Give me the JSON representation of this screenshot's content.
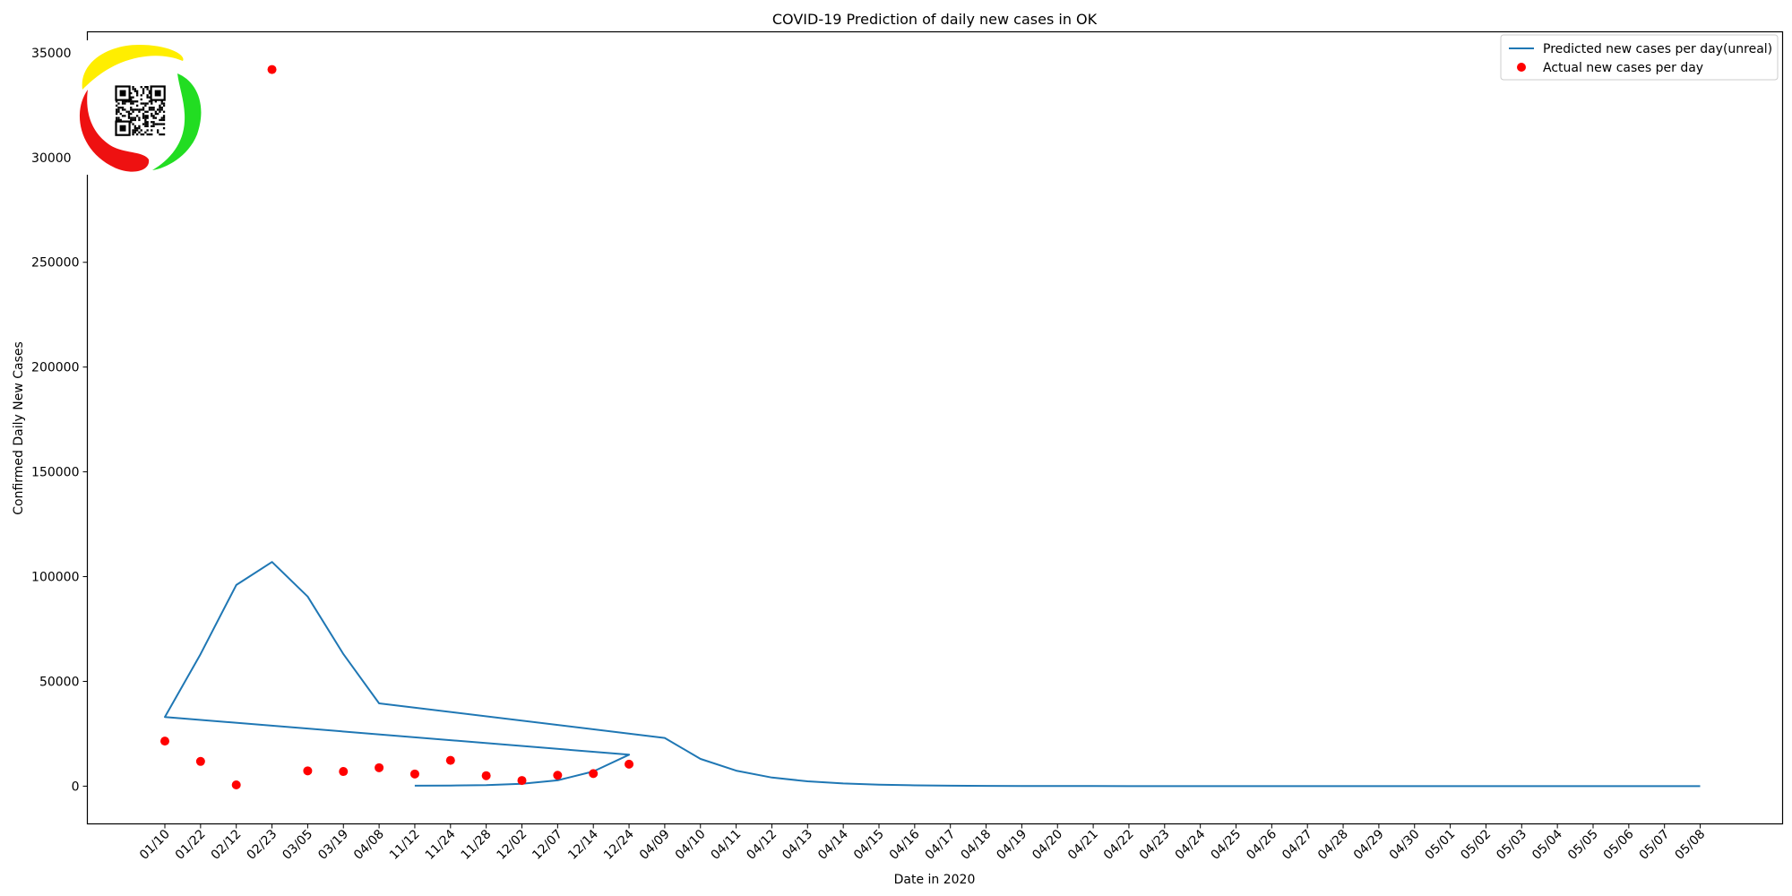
{
  "chart_data": {
    "type": "line",
    "title": "COVID-19 Prediction of daily new cases in OK",
    "xlabel": "Date in 2020",
    "ylabel": "Confirmed Daily New Cases",
    "ylim": [
      -18000,
      360000
    ],
    "yticks": [
      0,
      50000,
      100000,
      150000,
      200000,
      250000,
      300000,
      350000
    ],
    "ytick_labels": [
      "0",
      "50000",
      "100000",
      "150000",
      "200000",
      "250000",
      "300000",
      "350000"
    ],
    "categories": [
      "01/10",
      "01/22",
      "02/12",
      "02/23",
      "03/05",
      "03/19",
      "04/08",
      "11/12",
      "11/24",
      "11/28",
      "12/02",
      "12/07",
      "12/14",
      "12/24",
      "04/09",
      "04/10",
      "04/11",
      "04/12",
      "04/13",
      "04/14",
      "04/15",
      "04/16",
      "04/17",
      "04/18",
      "04/19",
      "04/20",
      "04/21",
      "04/22",
      "04/23",
      "04/24",
      "04/25",
      "04/26",
      "04/27",
      "04/28",
      "04/29",
      "04/30",
      "05/01",
      "05/02",
      "05/03",
      "05/04",
      "05/05",
      "05/06",
      "05/07",
      "05/08"
    ],
    "grid": false,
    "legend_position": "top-right",
    "series": [
      {
        "name": "Predicted new cases per day(unreal)",
        "kind": "line",
        "color": "#1f77b4",
        "points": [
          [
            "11/12",
            200
          ],
          [
            "11/24",
            300
          ],
          [
            "11/28",
            500
          ],
          [
            "12/02",
            1100
          ],
          [
            "12/07",
            2800
          ],
          [
            "12/14",
            7000
          ],
          [
            "12/24",
            15000
          ],
          [
            "01/10",
            33000
          ],
          [
            "01/22",
            63000
          ],
          [
            "02/12",
            96000
          ],
          [
            "02/23",
            107000
          ],
          [
            "03/05",
            90500
          ],
          [
            "03/19",
            63000
          ],
          [
            "04/08",
            39500
          ],
          [
            "04/09",
            23000
          ],
          [
            "04/10",
            13000
          ],
          [
            "04/11",
            7400
          ],
          [
            "04/12",
            4100
          ],
          [
            "04/13",
            2300
          ],
          [
            "04/14",
            1300
          ],
          [
            "04/15",
            700
          ],
          [
            "04/16",
            400
          ],
          [
            "04/17",
            230
          ],
          [
            "04/18",
            130
          ],
          [
            "04/19",
            75
          ],
          [
            "04/20",
            40
          ],
          [
            "04/21",
            25
          ],
          [
            "04/22",
            15
          ],
          [
            "04/23",
            8
          ],
          [
            "04/24",
            5
          ],
          [
            "04/25",
            3
          ],
          [
            "04/26",
            2
          ],
          [
            "04/27",
            1
          ],
          [
            "04/28",
            1
          ],
          [
            "04/29",
            0
          ],
          [
            "04/30",
            0
          ],
          [
            "05/01",
            0
          ],
          [
            "05/02",
            0
          ],
          [
            "05/03",
            0
          ],
          [
            "05/04",
            0
          ],
          [
            "05/05",
            0
          ],
          [
            "05/06",
            0
          ],
          [
            "05/07",
            0
          ],
          [
            "05/08",
            0
          ]
        ]
      },
      {
        "name": "Actual new cases per day",
        "kind": "scatter",
        "color": "#ff0000",
        "points": [
          [
            "01/10",
            21500
          ],
          [
            "01/22",
            11800
          ],
          [
            "02/12",
            600
          ],
          [
            "02/23",
            342000
          ],
          [
            "03/05",
            7300
          ],
          [
            "03/19",
            7000
          ],
          [
            "04/08",
            8800
          ],
          [
            "11/12",
            5800
          ],
          [
            "11/24",
            12300
          ],
          [
            "11/28",
            5000
          ],
          [
            "12/02",
            2700
          ],
          [
            "12/07",
            5200
          ],
          [
            "12/14",
            6000
          ],
          [
            "12/24",
            10500
          ]
        ]
      }
    ]
  },
  "logo": {
    "name": "qr-logo",
    "colors": [
      "#ffee00",
      "#22dd22",
      "#ee1111"
    ]
  }
}
